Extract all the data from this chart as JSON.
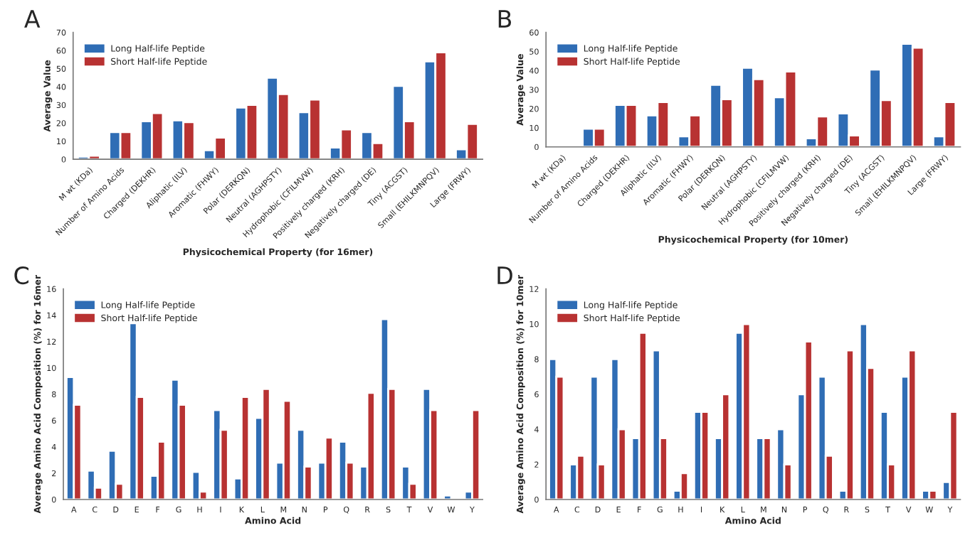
{
  "chart_data": [
    {
      "type": "bar",
      "title": "A",
      "xlabel": "Physicochemical Property (for 16mer)",
      "ylabel": "Average Value",
      "categories": [
        "M wt (KDa)",
        "Number of Amino Acids",
        "Charged (DEKHR)",
        "Aliphatic (ILV)",
        "Aromatic (FHWY)",
        "Polar (DERKQN)",
        "Neutral (AGHPSTY)",
        "Hydrophobic (CFILMVW)",
        "Positively charged (KRH)",
        "Negatively charged (DE)",
        "Tiny (ACGST)",
        "Small (EHILKMNPQV)",
        "Large (FRWY)"
      ],
      "series": [
        {
          "name": "Long Half-life Peptide",
          "color": "#2f6db5",
          "values": [
            1.5,
            15,
            21,
            21.5,
            5,
            28.5,
            45,
            26,
            6.5,
            15,
            40.5,
            54,
            5.5
          ]
        },
        {
          "name": "Short Half-life Peptide",
          "color": "#b83232",
          "values": [
            2,
            15,
            25.5,
            20.5,
            12,
            30,
            36,
            33,
            16.5,
            9,
            21,
            59,
            19.5
          ]
        }
      ],
      "ylim": [
        0,
        70
      ],
      "yticks": [
        0,
        10,
        20,
        30,
        40,
        50,
        60,
        70
      ],
      "legend": "top left",
      "grid": false
    },
    {
      "type": "bar",
      "title": "B",
      "xlabel": "Physicochemical Property (for 10mer)",
      "ylabel": "Average Value",
      "categories": [
        "M wt (KDa)",
        "Number of Amino Acids",
        "Charged (DEKHR)",
        "Aliphatic (ILV)",
        "Aromatic (FHWY)",
        "Polar (DERKQN)",
        "Neutral (AGHPSTY)",
        "Hydrophobic (CFILMVW)",
        "Positively charged (KRH)",
        "Negatively charged (DE)",
        "Tiny (ACGST)",
        "Small (EHILKMNPQV)",
        "Large (FRWY)"
      ],
      "series": [
        {
          "name": "Long Half-life Peptide",
          "color": "#2f6db5",
          "values": [
            1,
            9.5,
            22,
            16.5,
            5.5,
            32.5,
            41.5,
            26,
            4.5,
            17.5,
            40.5,
            54,
            5.5
          ]
        },
        {
          "name": "Short Half-life Peptide",
          "color": "#b83232",
          "values": [
            1,
            9.5,
            22,
            23.5,
            16.5,
            25,
            35.5,
            39.5,
            16,
            6,
            24.5,
            52,
            23.5
          ]
        }
      ],
      "ylim": [
        0,
        60
      ],
      "yticks": [
        0,
        10,
        20,
        30,
        40,
        50,
        60
      ],
      "legend": "top left",
      "grid": false
    },
    {
      "type": "bar",
      "title": "C",
      "xlabel": "Amino Acid",
      "ylabel": "Average Amino Acid Composition (%) for 16mer",
      "categories": [
        "A",
        "C",
        "D",
        "E",
        "F",
        "G",
        "H",
        "I",
        "K",
        "L",
        "M",
        "N",
        "P",
        "Q",
        "R",
        "S",
        "T",
        "V",
        "W",
        "Y"
      ],
      "series": [
        {
          "name": "Long Half-life Peptide",
          "color": "#2f6db5",
          "values": [
            9.3,
            2.2,
            3.7,
            13.4,
            1.8,
            9.1,
            2.1,
            6.8,
            1.6,
            6.2,
            2.8,
            5.3,
            2.8,
            4.4,
            2.5,
            13.7,
            2.5,
            8.4,
            0.3,
            0.6
          ]
        },
        {
          "name": "Short Half-life Peptide",
          "color": "#b83232",
          "values": [
            7.2,
            0.9,
            1.2,
            7.8,
            4.4,
            7.2,
            0.6,
            5.3,
            7.8,
            8.4,
            7.5,
            2.5,
            4.7,
            2.8,
            8.1,
            8.4,
            1.2,
            6.8,
            null,
            6.8
          ]
        }
      ],
      "ylim": [
        0,
        16
      ],
      "yticks": [
        0,
        2,
        4,
        6,
        8,
        10,
        12,
        14,
        16
      ],
      "legend": "top left",
      "grid": false
    },
    {
      "type": "bar",
      "title": "D",
      "xlabel": "Amino Acid",
      "ylabel": "Average Amino Acid Composition (%) for 10mer",
      "categories": [
        "A",
        "C",
        "D",
        "E",
        "F",
        "G",
        "H",
        "I",
        "K",
        "L",
        "M",
        "N",
        "P",
        "Q",
        "R",
        "S",
        "T",
        "V",
        "W",
        "Y"
      ],
      "series": [
        {
          "name": "Long Half-life Peptide",
          "color": "#2f6db5",
          "values": [
            8,
            2,
            7,
            8,
            3.5,
            8.5,
            0.5,
            5,
            3.5,
            9.5,
            3.5,
            4,
            6,
            7,
            0.5,
            10,
            5,
            7,
            0.5,
            1
          ]
        },
        {
          "name": "Short Half-life Peptide",
          "color": "#b83232",
          "values": [
            7,
            2.5,
            2,
            4,
            9.5,
            3.5,
            1.5,
            5,
            6,
            10,
            3.5,
            2,
            9,
            2.5,
            8.5,
            7.5,
            2,
            8.5,
            0.5,
            5
          ]
        }
      ],
      "ylim": [
        0,
        12
      ],
      "yticks": [
        0,
        2,
        4,
        6,
        8,
        10,
        12
      ],
      "legend": "top left",
      "grid": false
    }
  ]
}
